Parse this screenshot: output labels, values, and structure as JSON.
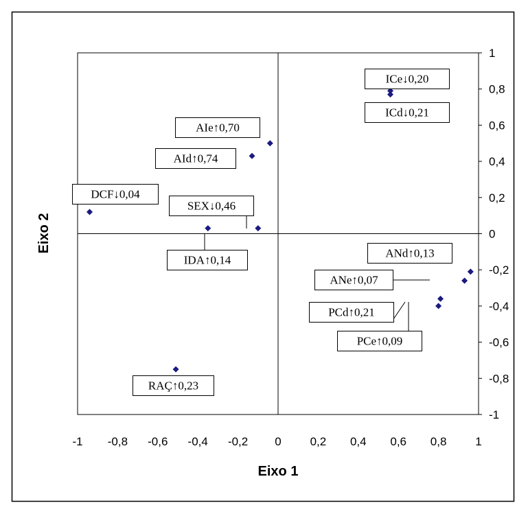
{
  "chart_data": {
    "type": "scatter",
    "title": "",
    "xlabel": "Eixo 1",
    "ylabel": "Eixo 2",
    "xlim": [
      -1,
      1
    ],
    "ylim": [
      -1,
      1
    ],
    "x_ticks": [
      "-1",
      "-0,8",
      "-0,6",
      "-0,4",
      "-0,2",
      "0",
      "0,2",
      "0,4",
      "0,6",
      "0,8",
      "1"
    ],
    "y_ticks": [
      "1",
      "0,8",
      "0,6",
      "0,4",
      "0,2",
      "0",
      "-0,2",
      "-0,4",
      "-0,6",
      "-0,8",
      "-1"
    ],
    "grid": false,
    "legend": "none",
    "marker_color": "#1a1a80",
    "points": [
      {
        "label": "ICe↓0,20",
        "x": 0.56,
        "y": 0.79
      },
      {
        "label": "ICd↓0,21",
        "x": 0.56,
        "y": 0.77
      },
      {
        "label": "AIe↑0,70",
        "x": -0.04,
        "y": 0.5
      },
      {
        "label": "AId↑0,74",
        "x": -0.13,
        "y": 0.43
      },
      {
        "label": "DCF↓0,04",
        "x": -0.94,
        "y": 0.12
      },
      {
        "label": "SEX↓0,46",
        "x": -0.1,
        "y": 0.03
      },
      {
        "label": "IDA↑0,14",
        "x": -0.35,
        "y": 0.03
      },
      {
        "label": "ANd↑0,13",
        "x": 0.96,
        "y": -0.21
      },
      {
        "label": "ANe↑0,07",
        "x": 0.93,
        "y": -0.26
      },
      {
        "label": "PCd↑0,21",
        "x": 0.81,
        "y": -0.36
      },
      {
        "label": "PCe↑0,09",
        "x": 0.8,
        "y": -0.4
      },
      {
        "label": "RAÇ↑0,23",
        "x": -0.51,
        "y": -0.75
      }
    ]
  }
}
